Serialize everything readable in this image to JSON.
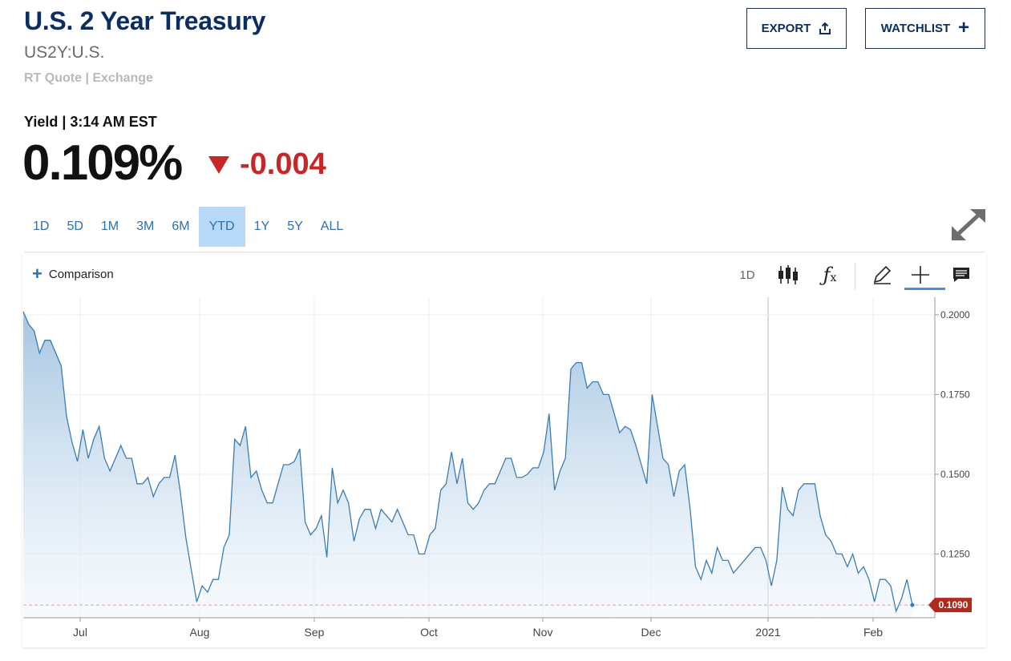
{
  "header": {
    "title": "U.S. 2 Year Treasury",
    "symbol": "US2Y:U.S.",
    "quote_source": "RT Quote | Exchange",
    "export_label": "EXPORT",
    "watchlist_label": "WATCHLIST"
  },
  "quote": {
    "yield_label": "Yield | 3:14 AM EST",
    "price": "0.109%",
    "change": "-0.004",
    "change_direction": "down",
    "change_color": "#c62828"
  },
  "tabs": [
    {
      "label": "1D",
      "active": false
    },
    {
      "label": "5D",
      "active": false
    },
    {
      "label": "1M",
      "active": false
    },
    {
      "label": "3M",
      "active": false
    },
    {
      "label": "6M",
      "active": false
    },
    {
      "label": "YTD",
      "active": true
    },
    {
      "label": "1Y",
      "active": false
    },
    {
      "label": "5Y",
      "active": false
    },
    {
      "label": "ALL",
      "active": false
    }
  ],
  "toolbar": {
    "comparison_label": "Comparison",
    "interval_label": "1D",
    "tools": [
      "candlestick-icon",
      "fx-indicator-icon",
      "pencil-icon",
      "crosshair-icon",
      "annotation-icon"
    ]
  },
  "colors": {
    "accent": "#2f6fab",
    "line": "#3a7db3",
    "last_price_badge": "#b02a1d",
    "title": "#0c2d5f"
  },
  "chart_data": {
    "type": "area",
    "ylim": [
      0.105,
      0.2055
    ],
    "y_ticks": [
      "0.2000",
      "0.1750",
      "0.1500",
      "0.1250"
    ],
    "x_ticks": [
      "Jul",
      "Aug",
      "Sep",
      "Oct",
      "Nov",
      "Dec",
      "2021",
      "Feb"
    ],
    "last_value_label": "0.1090",
    "last_value": 0.109,
    "grid": true,
    "series": [
      {
        "values": [
          0.201,
          0.197,
          0.195,
          0.188,
          0.192,
          0.192,
          0.188,
          0.184,
          0.168,
          0.16,
          0.154,
          0.164,
          0.155,
          0.161,
          0.165,
          0.155,
          0.151,
          0.155,
          0.159,
          0.155,
          0.155,
          0.147,
          0.147,
          0.149,
          0.143,
          0.147,
          0.149,
          0.149,
          0.156,
          0.144,
          0.13,
          0.12,
          0.11,
          0.115,
          0.113,
          0.117,
          0.117,
          0.127,
          0.131,
          0.161,
          0.159,
          0.165,
          0.149,
          0.151,
          0.145,
          0.141,
          0.141,
          0.147,
          0.153,
          0.153,
          0.154,
          0.158,
          0.135,
          0.131,
          0.133,
          0.137,
          0.124,
          0.152,
          0.141,
          0.145,
          0.141,
          0.129,
          0.136,
          0.139,
          0.139,
          0.133,
          0.139,
          0.137,
          0.135,
          0.139,
          0.135,
          0.131,
          0.131,
          0.125,
          0.125,
          0.131,
          0.133,
          0.145,
          0.147,
          0.157,
          0.147,
          0.155,
          0.141,
          0.139,
          0.141,
          0.145,
          0.147,
          0.147,
          0.151,
          0.155,
          0.155,
          0.149,
          0.149,
          0.15,
          0.152,
          0.152,
          0.157,
          0.169,
          0.145,
          0.151,
          0.155,
          0.183,
          0.185,
          0.185,
          0.177,
          0.179,
          0.179,
          0.175,
          0.175,
          0.169,
          0.163,
          0.165,
          0.164,
          0.159,
          0.153,
          0.147,
          0.175,
          0.165,
          0.155,
          0.153,
          0.143,
          0.151,
          0.153,
          0.139,
          0.121,
          0.117,
          0.123,
          0.119,
          0.127,
          0.123,
          0.123,
          0.119,
          0.121,
          0.123,
          0.125,
          0.127,
          0.127,
          0.123,
          0.115,
          0.123,
          0.146,
          0.139,
          0.137,
          0.145,
          0.147,
          0.147,
          0.147,
          0.137,
          0.131,
          0.129,
          0.125,
          0.125,
          0.121,
          0.125,
          0.119,
          0.121,
          0.117,
          0.11,
          0.117,
          0.117,
          0.115,
          0.107,
          0.111,
          0.117,
          0.109
        ]
      }
    ]
  }
}
